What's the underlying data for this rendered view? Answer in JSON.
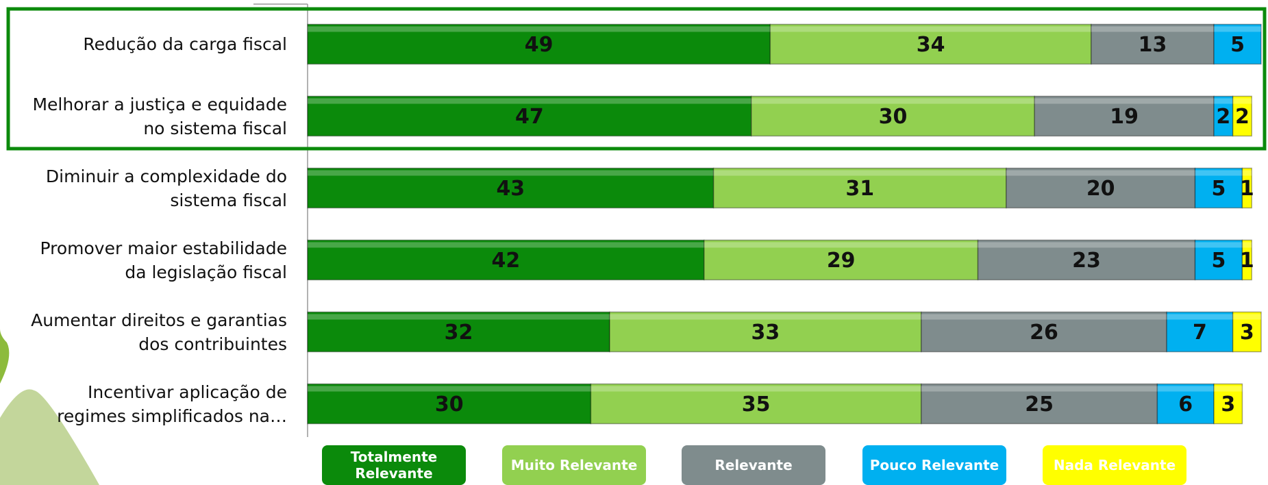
{
  "chart_data": {
    "type": "stacked_bar_horizontal",
    "categories": [
      "Redução da carga fiscal",
      "Melhorar a justiça e equidade no sistema fiscal",
      "Diminuir a complexidade do sistema fiscal",
      "Promover maior estabilidade da legislação fiscal",
      "Aumentar direitos e garantias dos contribuintes",
      "Incentivar aplicação de regimes simplificados na…"
    ],
    "series": [
      {
        "name": "Totalmente Relevante",
        "color": "#0b8a0b",
        "values": [
          49,
          47,
          43,
          42,
          32,
          30
        ]
      },
      {
        "name": "Muito Relevante",
        "color": "#92d050",
        "values": [
          34,
          30,
          31,
          29,
          33,
          35
        ]
      },
      {
        "name": "Relevante",
        "color": "#7f8c8d",
        "values": [
          13,
          19,
          20,
          23,
          26,
          25
        ]
      },
      {
        "name": "Pouco Relevante",
        "color": "#00b0f0",
        "values": [
          5,
          2,
          5,
          5,
          7,
          6
        ]
      },
      {
        "name": "Nada Relevante",
        "color": "#ffff00",
        "values": [
          null,
          2,
          1,
          1,
          3,
          3
        ]
      }
    ],
    "xlim": [
      0,
      101
    ]
  }
}
